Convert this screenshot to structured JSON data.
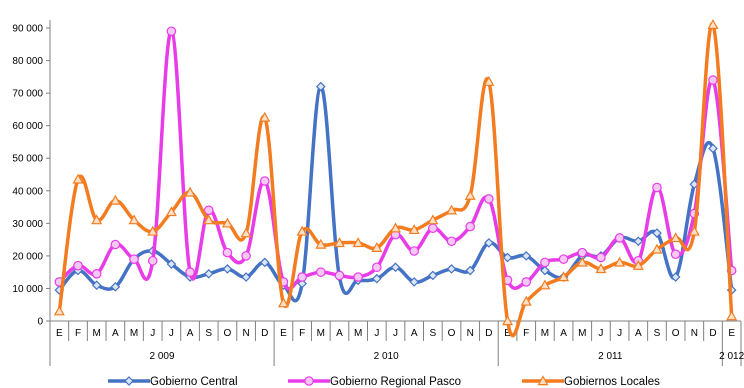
{
  "chart_data": {
    "type": "line",
    "title": "",
    "xlabel": "",
    "ylabel": "",
    "ylim": [
      0,
      90000
    ],
    "yticks": [
      0,
      10000,
      20000,
      30000,
      40000,
      50000,
      60000,
      70000,
      80000,
      90000
    ],
    "ytick_labels": [
      "0",
      "10 000",
      "20 000",
      "30 000",
      "40 000",
      "50 000",
      "60 000",
      "70 000",
      "80 000",
      "90 000"
    ],
    "grid": false,
    "legend_position": "bottom",
    "categories": [
      "E",
      "F",
      "M",
      "A",
      "M",
      "J",
      "J",
      "A",
      "S",
      "O",
      "N",
      "D",
      "E",
      "F",
      "M",
      "A",
      "M",
      "J",
      "J",
      "A",
      "S",
      "O",
      "N",
      "D",
      "E",
      "F",
      "M",
      "A",
      "M",
      "J",
      "J",
      "A",
      "S",
      "O",
      "N",
      "D",
      "E"
    ],
    "groups": [
      {
        "label": "2 009",
        "count": 12
      },
      {
        "label": "2 010",
        "count": 12
      },
      {
        "label": "2 011",
        "count": 12
      },
      {
        "label": "2 012",
        "count": 1
      }
    ],
    "series": [
      {
        "name": "Gobierno Central",
        "color": "#4472C4",
        "marker": "diamond",
        "values": [
          9500,
          15500,
          11000,
          10500,
          19000,
          21500,
          17500,
          13500,
          14500,
          16000,
          13500,
          18000,
          11000,
          11500,
          72000,
          13500,
          12500,
          13000,
          16500,
          12000,
          14000,
          16000,
          15500,
          24000,
          19500,
          20000,
          15500,
          13500,
          20000,
          20000,
          25500,
          24500,
          27000,
          13500,
          42000,
          53000,
          9500
        ]
      },
      {
        "name": "Gobierno Regional Pasco",
        "color": "#E83CE8",
        "marker": "circle",
        "values": [
          12000,
          17000,
          14500,
          23500,
          19000,
          18500,
          89000,
          15000,
          34000,
          21000,
          20000,
          43000,
          12000,
          13500,
          15000,
          14000,
          13500,
          16500,
          26500,
          21500,
          28500,
          24500,
          29000,
          37500,
          12500,
          12000,
          18000,
          19000,
          21000,
          19500,
          25500,
          18500,
          41000,
          20500,
          33000,
          74000,
          15500
        ]
      },
      {
        "name": "Gobiernos Locales",
        "color": "#F47C20",
        "marker": "triangle",
        "values": [
          3000,
          43500,
          31000,
          37000,
          31000,
          27500,
          33500,
          39500,
          31000,
          30000,
          27000,
          62500,
          5500,
          27500,
          23500,
          24000,
          24000,
          22500,
          28500,
          28000,
          31000,
          34000,
          38500,
          73500,
          0,
          6000,
          11000,
          13500,
          18000,
          16000,
          18000,
          17000,
          22000,
          25500,
          27500,
          91000,
          1500
        ]
      }
    ]
  }
}
